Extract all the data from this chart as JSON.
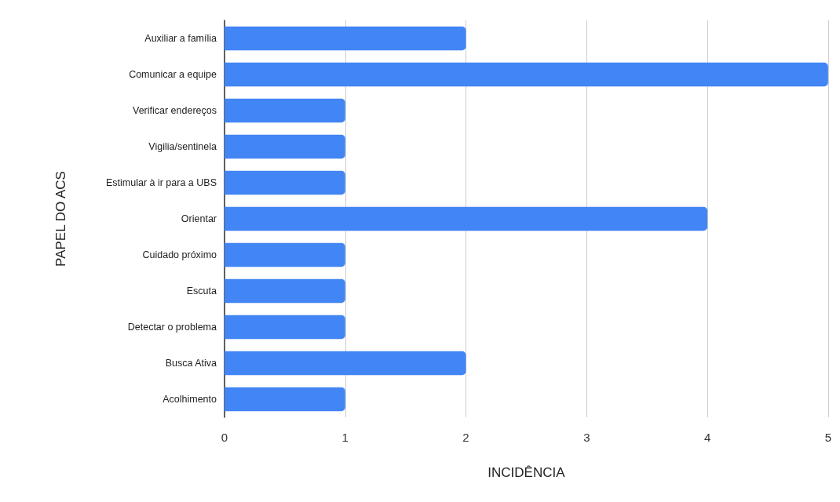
{
  "chart_data": {
    "type": "bar",
    "orientation": "horizontal",
    "xlabel": "INCIDÊNCIA",
    "ylabel": "PAPEL DO ACS",
    "categories": [
      "Auxiliar a família",
      "Comunicar a equipe",
      "Verificar endereços",
      "Vigilia/sentinela",
      "Estimular à ir para a UBS",
      "Orientar",
      "Cuidado próximo",
      "Escuta",
      "Detectar o problema",
      "Busca Ativa",
      "Acolhimento"
    ],
    "values": [
      2,
      5,
      1,
      1,
      1,
      4,
      1,
      1,
      1,
      2,
      1
    ],
    "color": "#4285f4",
    "xlim": [
      0,
      5
    ],
    "xticks": [
      0,
      1,
      2,
      3,
      4,
      5
    ],
    "grid": "x"
  }
}
